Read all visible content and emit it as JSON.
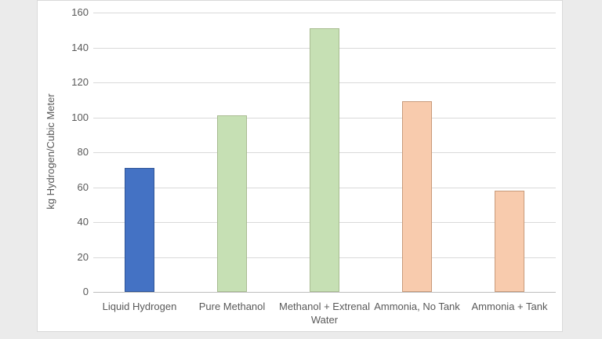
{
  "page": {
    "background_color": "#ebebeb",
    "card_background": "#ffffff",
    "card_border_color": "#d9d9d9"
  },
  "chart_data": {
    "type": "bar",
    "title": "",
    "categories": [
      "Liquid Hydrogen",
      "Pure Methanol",
      "Methanol + Extrenal Water",
      "Ammonia, No Tank",
      "Ammonia + Tank"
    ],
    "values": [
      71,
      101,
      151,
      109,
      58
    ],
    "bar_fill_colors": [
      "#4472c4",
      "#c6e0b4",
      "#c6e0b4",
      "#f8cbad",
      "#f8cbad"
    ],
    "bar_border_colors": [
      "#2f5597",
      "#a9bc92",
      "#a9bc92",
      "#c89b7b",
      "#c89b7b"
    ],
    "xlabel": "",
    "ylabel": "kg Hydrogen/Cubic Meter",
    "ylim": [
      0,
      160
    ],
    "ytick_step": 20,
    "yticks": [
      0,
      20,
      40,
      60,
      80,
      100,
      120,
      140,
      160
    ],
    "grid": true,
    "legend": "none",
    "gridline_color": "#d9d9d9",
    "axis_line_color": "#bfbfbf",
    "text_color": "#595959"
  }
}
